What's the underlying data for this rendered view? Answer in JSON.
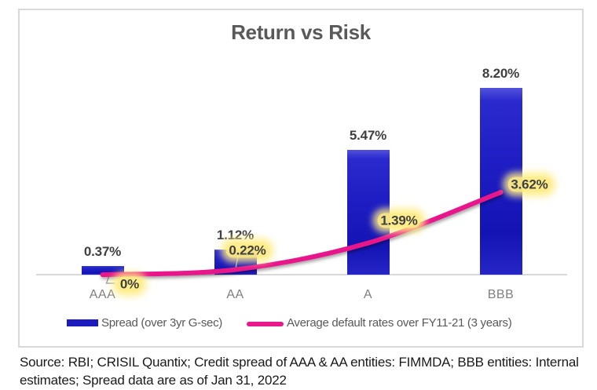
{
  "chart_data": {
    "type": "combo-bar-line",
    "title": "Return vs Risk",
    "categories": [
      "AAA",
      "AA",
      "A",
      "BBB"
    ],
    "series": [
      {
        "name": "Spread (over 3yr G-sec)",
        "kind": "bar",
        "values": [
          0.37,
          1.12,
          5.47,
          8.2
        ],
        "labels": [
          "0.37%",
          "1.12%",
          "5.47%",
          "8.20%"
        ],
        "color": "#1c1cbe"
      },
      {
        "name": "Average default rates over FY11-21 (3 years)",
        "kind": "line",
        "values": [
          0,
          0.22,
          1.39,
          3.62
        ],
        "labels": [
          "0%",
          "0.22%",
          "1.39%",
          "3.62%"
        ],
        "color": "#e8198b",
        "label_highlight_color": "#ffec85"
      }
    ],
    "xlabel": "",
    "ylabel": "",
    "ylim": [
      0,
      9
    ],
    "grid": false,
    "legend_position": "bottom",
    "value_labels_shown": true
  },
  "colors": {
    "bar_blue": "#1c1cbe",
    "line_pink": "#e8198b",
    "callout_glow_yellow": "#ffec85",
    "title_text": "#595959",
    "value_text": "#3f3f3f",
    "category_text": "#7f7f7f",
    "axis_gray": "#d9d9d9",
    "border_gray": "#d9d9d9",
    "leader_gray": "#a6a6a6",
    "source_text": "#1a1a1a"
  },
  "source_note": "Source: RBI; CRISIL Quantix; Credit spread of AAA & AA entities: FIMMDA; BBB entities: Internal estimates; Spread data are as of Jan 31, 2022"
}
